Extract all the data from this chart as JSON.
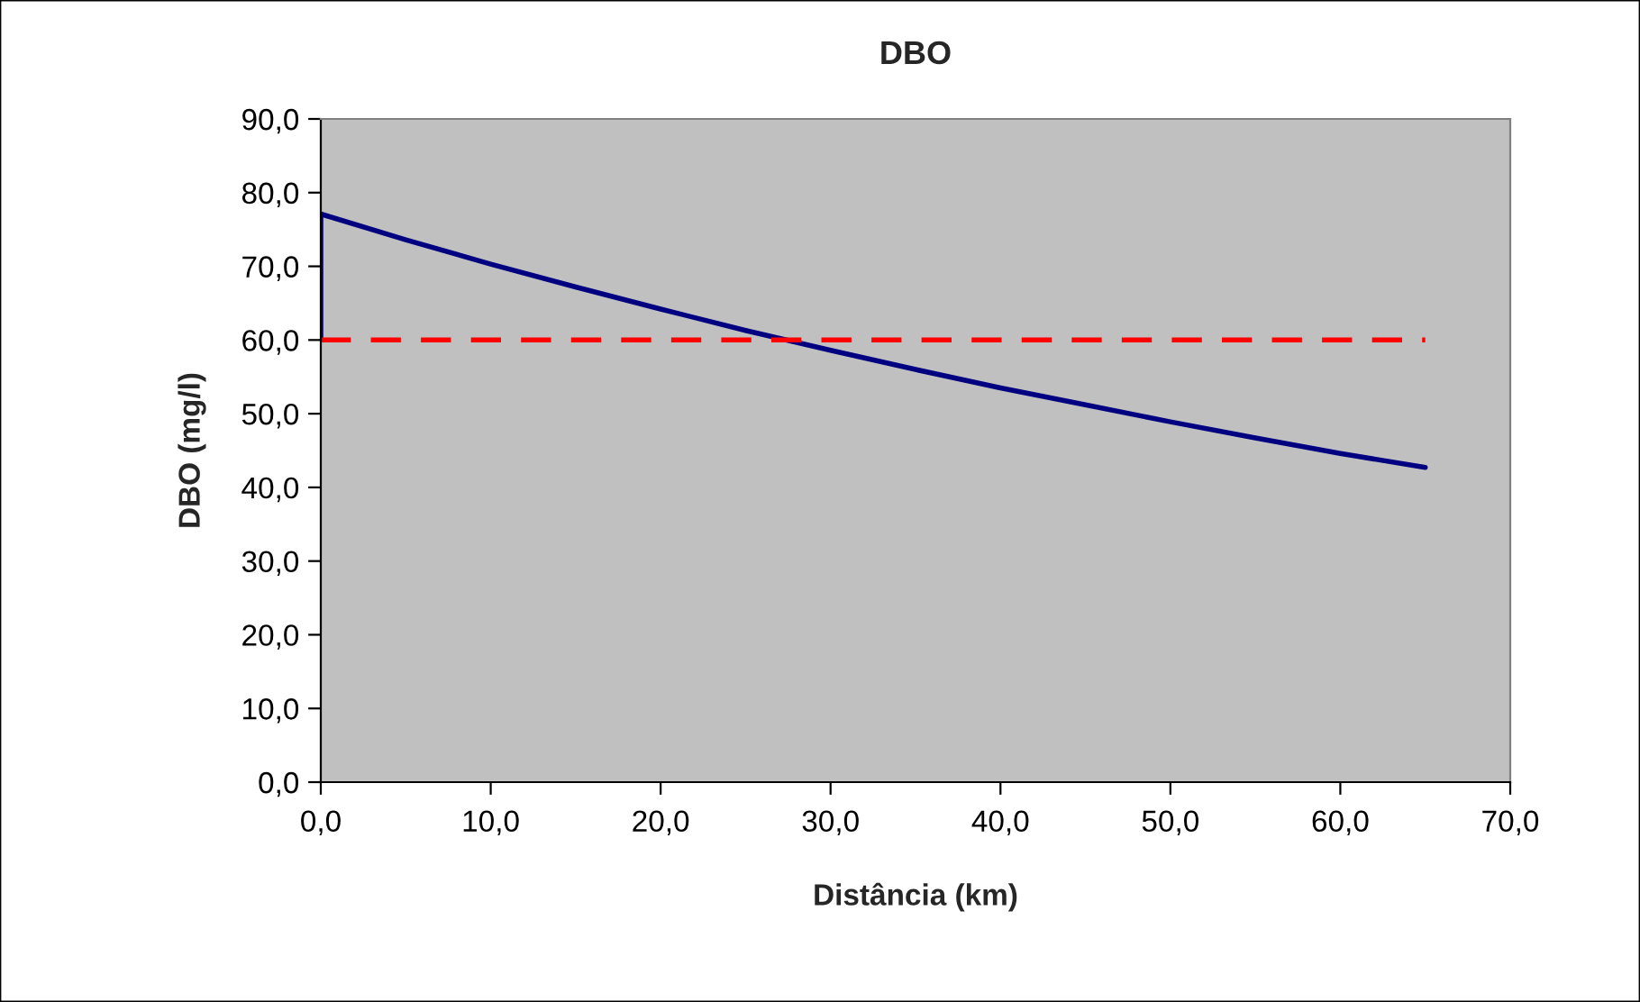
{
  "chart_data": {
    "type": "line",
    "title": "DBO",
    "xlabel": "Distância (km)",
    "ylabel": "DBO (mg/l)",
    "series": [
      {
        "color": "#000080",
        "x": [
          0,
          0,
          5,
          10,
          15,
          20,
          25,
          30,
          35,
          40,
          45,
          50,
          55,
          60,
          65
        ],
        "values": [
          60.0,
          77.1,
          73.6,
          70.3,
          67.2,
          64.2,
          61.3,
          58.6,
          56.0,
          53.5,
          51.2,
          48.9,
          46.7,
          44.6,
          42.7
        ],
        "line_style": "solid"
      },
      {
        "color": "#ff0000",
        "x": [
          0,
          65
        ],
        "values": [
          60.0,
          60.0
        ],
        "line_style": "dashed"
      }
    ],
    "xlim": [
      0,
      70
    ],
    "ylim": [
      0,
      90
    ],
    "xticks": [
      {
        "value": 0,
        "label": "0,0"
      },
      {
        "value": 10,
        "label": "10,0"
      },
      {
        "value": 20,
        "label": "20,0"
      },
      {
        "value": 30,
        "label": "30,0"
      },
      {
        "value": 40,
        "label": "40,0"
      },
      {
        "value": 50,
        "label": "50,0"
      },
      {
        "value": 60,
        "label": "60,0"
      },
      {
        "value": 70,
        "label": "70,0"
      }
    ],
    "yticks": [
      {
        "value": 0,
        "label": "0,0"
      },
      {
        "value": 10,
        "label": "10,0"
      },
      {
        "value": 20,
        "label": "20,0"
      },
      {
        "value": 30,
        "label": "30,0"
      },
      {
        "value": 40,
        "label": "40,0"
      },
      {
        "value": 50,
        "label": "50,0"
      },
      {
        "value": 60,
        "label": "60,0"
      },
      {
        "value": 70,
        "label": "70,0"
      },
      {
        "value": 80,
        "label": "80,0"
      },
      {
        "value": 90,
        "label": "90,0"
      }
    ],
    "grid": false,
    "marker": "none"
  }
}
